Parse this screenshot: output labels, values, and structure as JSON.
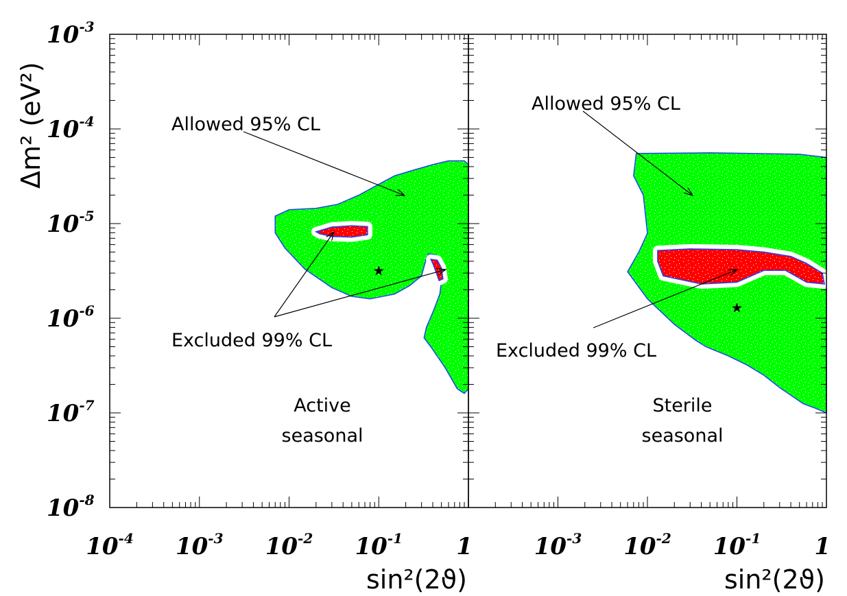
{
  "chart_data": [
    {
      "type": "contour",
      "panel": "Active seasonal",
      "title": "",
      "label_lines": [
        "Active",
        "seasonal"
      ],
      "xlabel": "sin²(2ϑ)",
      "ylabel": "Δm² (eV²)",
      "xscale": "log",
      "yscale": "log",
      "xlim": [
        0.0001,
        1
      ],
      "ylim": [
        1e-08,
        0.001
      ],
      "x_ticks": [
        {
          "value": 0.0001,
          "base": "10",
          "exp": "-4"
        },
        {
          "value": 0.001,
          "base": "10",
          "exp": "-3"
        },
        {
          "value": 0.01,
          "base": "10",
          "exp": "-2"
        },
        {
          "value": 0.1,
          "base": "10",
          "exp": "-1"
        },
        {
          "value": 1,
          "base": "1",
          "exp": ""
        }
      ],
      "y_ticks": [
        {
          "value": 0.001,
          "base": "10",
          "exp": "-3"
        },
        {
          "value": 0.0001,
          "base": "10",
          "exp": "-4"
        },
        {
          "value": 1e-05,
          "base": "10",
          "exp": "-5"
        },
        {
          "value": 1e-06,
          "base": "10",
          "exp": "-6"
        },
        {
          "value": 1e-07,
          "base": "10",
          "exp": "-7"
        },
        {
          "value": 1e-08,
          "base": "10",
          "exp": "-8"
        }
      ],
      "allowed_label": "Allowed 95% CL",
      "excluded_label": "Excluded 99% CL",
      "allowed_region_95": [
        [
          0.007,
          1.2e-05
        ],
        [
          0.01,
          1.4e-05
        ],
        [
          0.02,
          1.45e-05
        ],
        [
          0.035,
          1.6e-05
        ],
        [
          0.06,
          2e-05
        ],
        [
          0.1,
          2.6e-05
        ],
        [
          0.15,
          3.2e-05
        ],
        [
          0.25,
          3.7e-05
        ],
        [
          0.4,
          4.2e-05
        ],
        [
          0.6,
          4.6e-05
        ],
        [
          0.9,
          4.6e-05
        ],
        [
          1,
          4.2e-05
        ],
        [
          1,
          1.8e-07
        ],
        [
          0.9,
          1.6e-07
        ],
        [
          0.75,
          1.8e-07
        ],
        [
          0.55,
          3e-07
        ],
        [
          0.38,
          5e-07
        ],
        [
          0.32,
          6.2e-07
        ],
        [
          0.34,
          8e-07
        ],
        [
          0.4,
          1.15e-06
        ],
        [
          0.48,
          1.8e-06
        ],
        [
          0.52,
          3.3e-06
        ],
        [
          0.44,
          4.6e-06
        ],
        [
          0.36,
          4.8e-06
        ],
        [
          0.34,
          4.3e-06
        ],
        [
          0.3,
          2.8e-06
        ],
        [
          0.22,
          2.2e-06
        ],
        [
          0.15,
          1.8e-06
        ],
        [
          0.08,
          1.6e-06
        ],
        [
          0.05,
          1.7e-06
        ],
        [
          0.03,
          2.1e-06
        ],
        [
          0.015,
          3.3e-06
        ],
        [
          0.009,
          5.5e-06
        ],
        [
          0.007,
          8e-06
        ]
      ],
      "excluded_regions_99": [
        [
          [
            0.02,
            8.2e-06
          ],
          [
            0.03,
            9.2e-06
          ],
          [
            0.05,
            9.5e-06
          ],
          [
            0.075,
            9.3e-06
          ],
          [
            0.075,
            7.6e-06
          ],
          [
            0.05,
            7.2e-06
          ],
          [
            0.03,
            7.3e-06
          ],
          [
            0.022,
            7.8e-06
          ]
        ],
        [
          [
            0.38,
            4.2e-06
          ],
          [
            0.45,
            4.1e-06
          ],
          [
            0.5,
            3.4e-06
          ],
          [
            0.52,
            2.6e-06
          ],
          [
            0.47,
            2.5e-06
          ],
          [
            0.44,
            3e-06
          ],
          [
            0.4,
            3.8e-06
          ]
        ]
      ],
      "best_fit": {
        "x": 0.1,
        "y": 3.2e-06
      }
    },
    {
      "type": "contour",
      "panel": "Sterile seasonal",
      "title": "",
      "label_lines": [
        "Sterile",
        "seasonal"
      ],
      "xlabel": "sin²(2ϑ)",
      "xscale": "log",
      "yscale": "log",
      "xlim": [
        0.0001,
        1
      ],
      "ylim": [
        1e-08,
        0.001
      ],
      "x_ticks": [
        {
          "value": 0.001,
          "base": "10",
          "exp": "-3"
        },
        {
          "value": 0.01,
          "base": "10",
          "exp": "-2"
        },
        {
          "value": 0.1,
          "base": "10",
          "exp": "-1"
        },
        {
          "value": 1,
          "base": "1",
          "exp": ""
        }
      ],
      "allowed_label": "Allowed 95% CL",
      "excluded_label": "Excluded 99% CL",
      "allowed_region_95": [
        [
          0.0075,
          5.5e-05
        ],
        [
          0.05,
          5.6e-05
        ],
        [
          0.5,
          5.4e-05
        ],
        [
          1,
          5e-05
        ],
        [
          1,
          1e-07
        ],
        [
          0.75,
          1.12e-07
        ],
        [
          0.55,
          1.25e-07
        ],
        [
          0.3,
          1.85e-07
        ],
        [
          0.2,
          2.5e-07
        ],
        [
          0.13,
          3.2e-07
        ],
        [
          0.08,
          4e-07
        ],
        [
          0.045,
          5e-07
        ],
        [
          0.035,
          5.8e-07
        ],
        [
          0.02,
          8.6e-07
        ],
        [
          0.01,
          1.6e-06
        ],
        [
          0.006,
          3.1e-06
        ],
        [
          0.008,
          5e-06
        ],
        [
          0.01,
          7.9e-06
        ],
        [
          0.009,
          2e-05
        ],
        [
          0.007,
          3.2e-05
        ]
      ],
      "excluded_regions_99": [
        [
          [
            0.013,
            5.2e-06
          ],
          [
            0.03,
            5.4e-06
          ],
          [
            0.1,
            5.3e-06
          ],
          [
            0.2,
            5e-06
          ],
          [
            0.4,
            4.5e-06
          ],
          [
            0.6,
            3.8e-06
          ],
          [
            0.9,
            3e-06
          ],
          [
            0.95,
            2.3e-06
          ],
          [
            0.6,
            2.4e-06
          ],
          [
            0.35,
            3.2e-06
          ],
          [
            0.2,
            3.2e-06
          ],
          [
            0.1,
            2.4e-06
          ],
          [
            0.04,
            2.3e-06
          ],
          [
            0.015,
            2.8e-06
          ],
          [
            0.013,
            4e-06
          ]
        ]
      ],
      "best_fit": {
        "x": 0.1,
        "y": 1.3e-06
      }
    }
  ]
}
